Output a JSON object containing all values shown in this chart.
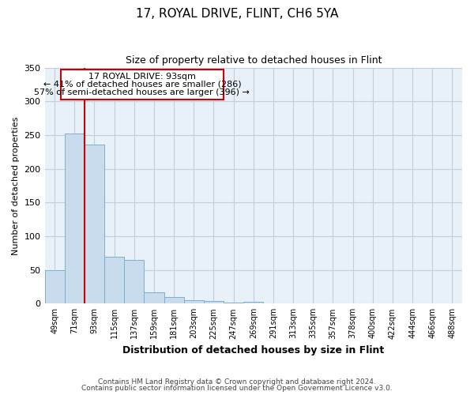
{
  "title": "17, ROYAL DRIVE, FLINT, CH6 5YA",
  "subtitle": "Size of property relative to detached houses in Flint",
  "xlabel": "Distribution of detached houses by size in Flint",
  "ylabel": "Number of detached properties",
  "bin_labels": [
    "49sqm",
    "71sqm",
    "93sqm",
    "115sqm",
    "137sqm",
    "159sqm",
    "181sqm",
    "203sqm",
    "225sqm",
    "247sqm",
    "269sqm",
    "291sqm",
    "313sqm",
    "335sqm",
    "357sqm",
    "378sqm",
    "400sqm",
    "422sqm",
    "444sqm",
    "466sqm",
    "488sqm"
  ],
  "bar_values": [
    50,
    252,
    236,
    69,
    65,
    17,
    10,
    5,
    4,
    2,
    3,
    0,
    0,
    0,
    0,
    0,
    0,
    0,
    0,
    0,
    0
  ],
  "bar_color": "#c8dcee",
  "bar_edgecolor": "#7ab0d0",
  "annotation_box_color": "#cc0000",
  "property_line_idx": 2,
  "annotation_title": "17 ROYAL DRIVE: 93sqm",
  "annotation_line1": "← 41% of detached houses are smaller (286)",
  "annotation_line2": "57% of semi-detached houses are larger (396) →",
  "ylim": [
    0,
    350
  ],
  "yticks": [
    0,
    50,
    100,
    150,
    200,
    250,
    300,
    350
  ],
  "footer1": "Contains HM Land Registry data © Crown copyright and database right 2024.",
  "footer2": "Contains public sector information licensed under the Open Government Licence v3.0.",
  "bg_color": "#ffffff",
  "plot_bg_color": "#e8f0f8",
  "grid_color": "#c0cfe0"
}
